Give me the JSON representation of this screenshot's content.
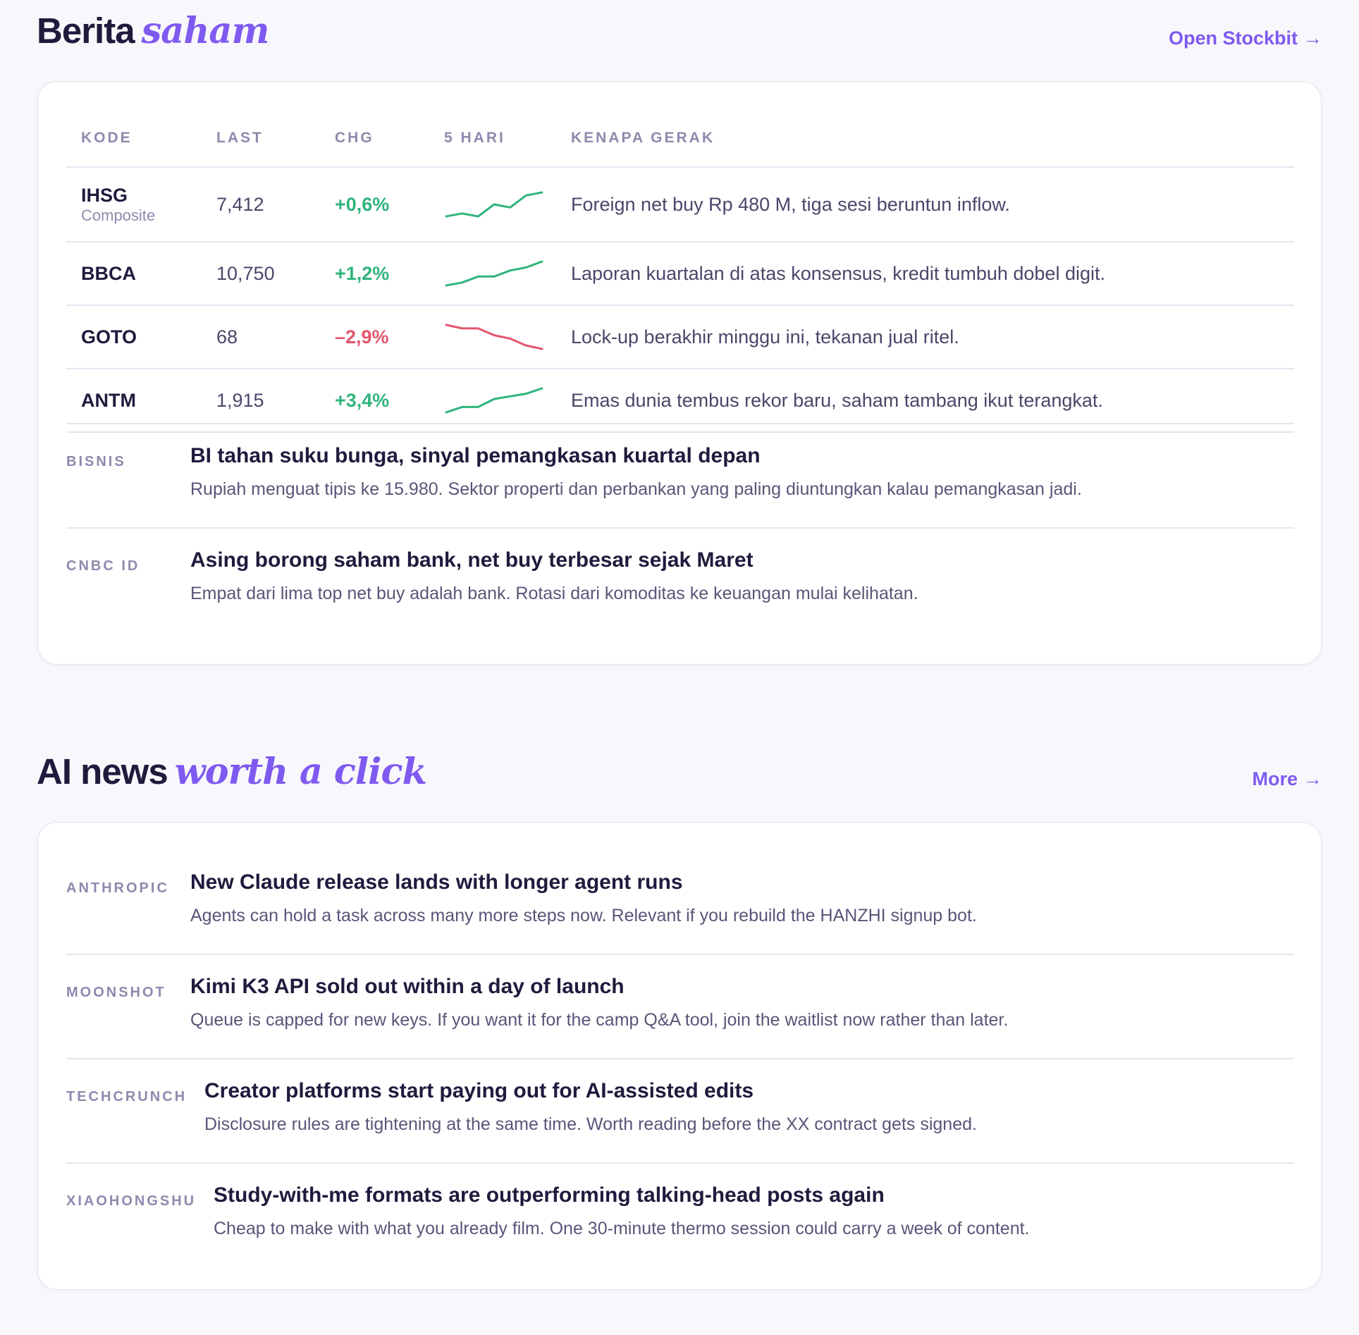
{
  "saham": {
    "title_main": "Berita",
    "title_accent": "saham",
    "link_label": "Open Stockbit",
    "link_arrow": "→",
    "columns": [
      "KODE",
      "LAST",
      "CHG",
      "5 HARI",
      "KENAPA GERAK"
    ],
    "rows": [
      {
        "code": "IHSG",
        "sub": "Composite",
        "last": "7,412",
        "chg": "+0,6%",
        "direction": "up",
        "spark": [
          2,
          3,
          2,
          6,
          5,
          9,
          10
        ],
        "why": "Foreign net buy Rp 480 M, tiga sesi beruntun inflow."
      },
      {
        "code": "BBCA",
        "sub": "",
        "last": "10,750",
        "chg": "+1,2%",
        "direction": "up",
        "spark": [
          2,
          3,
          5,
          5,
          7,
          8,
          10
        ],
        "why": "Laporan kuartalan di atas konsensus, kredit tumbuh dobel digit."
      },
      {
        "code": "GOTO",
        "sub": "",
        "last": "68",
        "chg": "–2,9%",
        "direction": "down",
        "spark": [
          10,
          9,
          9,
          7,
          6,
          4,
          3
        ],
        "why": "Lock-up berakhir minggu ini, tekanan jual ritel."
      },
      {
        "code": "ANTM",
        "sub": "",
        "last": "1,915",
        "chg": "+3,4%",
        "direction": "up",
        "spark": [
          1,
          3,
          3,
          6,
          7,
          8,
          10
        ],
        "why": "Emas dunia tembus rekor baru, saham tambang ikut terangkat."
      }
    ],
    "news": [
      {
        "source": "BISNIS",
        "headline": "BI tahan suku bunga, sinyal pemangkasan kuartal depan",
        "summary": "Rupiah menguat tipis ke 15.980. Sektor properti dan perbankan yang paling diuntungkan kalau pemangkasan jadi."
      },
      {
        "source": "CNBC ID",
        "headline": "Asing borong saham bank, net buy terbesar sejak Maret",
        "summary": "Empat dari lima top net buy adalah bank. Rotasi dari komoditas ke keuangan mulai kelihatan."
      }
    ]
  },
  "ai": {
    "title_main": "AI news",
    "title_accent": "worth a click",
    "link_label": "More",
    "link_arrow": "→",
    "news": [
      {
        "source": "ANTHROPIC",
        "headline": "New Claude release lands with longer agent runs",
        "summary": "Agents can hold a task across many more steps now. Relevant if you rebuild the HANZHI signup bot."
      },
      {
        "source": "MOONSHOT",
        "headline": "Kimi K3 API sold out within a day of launch",
        "summary": "Queue is capped for new keys. If you want it for the camp Q&A tool, join the waitlist now rather than later."
      },
      {
        "source": "TECHCRUNCH",
        "headline": "Creator platforms start paying out for AI-assisted edits",
        "summary": "Disclosure rules are tightening at the same time. Worth reading before the XX contract gets signed."
      },
      {
        "source": "XIAOHONGSHU",
        "headline": "Study-with-me formats are outperforming talking-head posts again",
        "summary": "Cheap to make with what you already film. One 30-minute thermo session could carry a week of content."
      }
    ]
  },
  "colors": {
    "up": "#2fb47c",
    "down": "#e4566d",
    "accent": "#7f5af0"
  }
}
